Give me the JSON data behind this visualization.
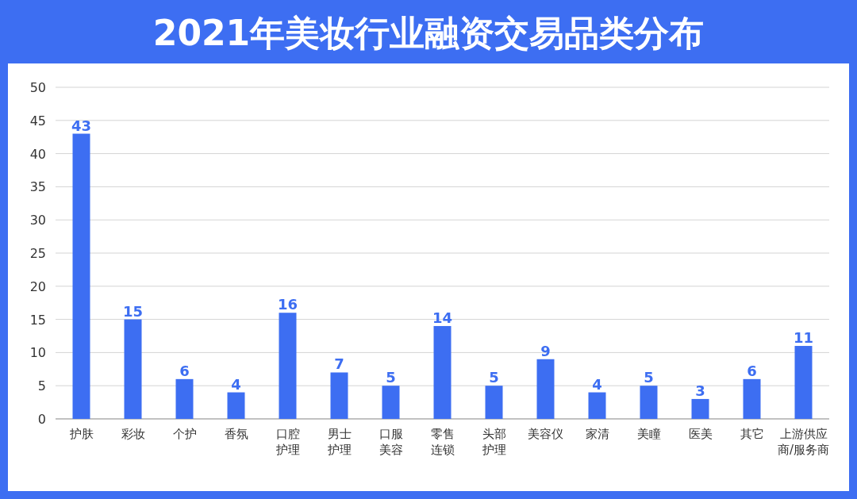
{
  "chart_data": {
    "type": "bar",
    "title": "2021年美妆行业融资交易品类分布",
    "categories": [
      "护肤",
      "彩妆",
      "个护",
      "香氛",
      "口腔护理",
      "男士护理",
      "口服美容",
      "零售连锁",
      "头部护理",
      "美容仪",
      "家清",
      "美瞳",
      "医美",
      "其它",
      "上游供应商/服务商"
    ],
    "values": [
      43,
      15,
      6,
      4,
      16,
      7,
      5,
      14,
      5,
      9,
      4,
      5,
      3,
      6,
      11
    ],
    "color": "#3d6ef2",
    "ylim": [
      0,
      50
    ],
    "yticks": [
      0,
      5,
      10,
      15,
      20,
      25,
      30,
      35,
      40,
      45,
      50
    ],
    "grid": "y",
    "data_labels": true
  }
}
